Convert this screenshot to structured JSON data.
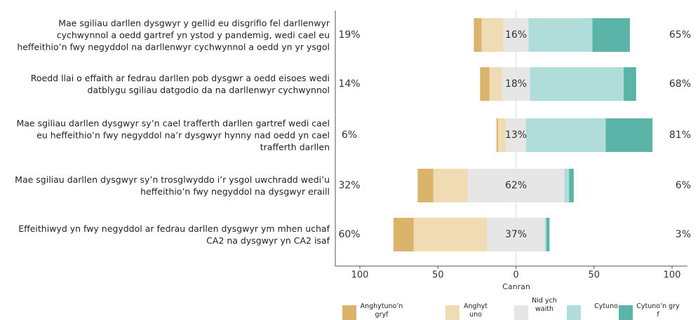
{
  "chart_data": {
    "type": "diverging_bar",
    "categories": [
      "Mae sgiliau darllen dysgwyr y gellid eu disgrifio fel darllenwyr cychwynnol a oedd gartref yn ystod y pandemig, wedi cael eu heffeithio’n fwy negyddol na darllenwyr cychwynnol a oedd yn yr ysgol",
      "Roedd llai o effaith ar fedrau darllen pob dysgwr a oedd eisoes wedi datblygu sgiliau datgodio da na darllenwyr cychwynnol",
      "Mae sgiliau darllen dysgwyr sy’n cael trafferth darllen gartref wedi cael eu heffeithio’n fwy negyddol na’r dysgwyr hynny nad oedd yn cael trafferth darllen",
      "Mae sgiliau darllen dysgwyr sy’n trosglwyddo i’r ysgol uwchradd wedi’u heffeithio’n fwy negyddol na dysgwyr eraill",
      "Effeithiwyd yn fwy negyddol ar fedrau darllen dysgwyr ym mhen uchaf CA2 na dysgwyr yn CA2 isaf"
    ],
    "series": [
      {
        "name": "Anghytuno’n gryf",
        "color": "#d9b46a",
        "side": "left",
        "values": [
          5,
          6,
          1,
          10,
          13
        ]
      },
      {
        "name": "Anghytuno",
        "color": "#f0dcb4",
        "side": "left",
        "values": [
          14,
          8,
          5,
          22,
          47
        ]
      },
      {
        "name": "Nid ychwaith",
        "color": "#e6e6e6",
        "side": "center",
        "values": [
          16,
          18,
          13,
          62,
          37
        ],
        "value_labels": [
          "16%",
          "18%",
          "13%",
          "62%",
          "37%"
        ]
      },
      {
        "name": "Cytuno",
        "color": "#b0ddd9",
        "side": "right",
        "values": [
          41,
          60,
          51,
          3,
          1
        ]
      },
      {
        "name": "Cytuno’n gryf",
        "color": "#5ab5a8",
        "side": "right",
        "values": [
          24,
          8,
          30,
          3,
          2
        ]
      }
    ],
    "left_totals": {
      "values": [
        19,
        14,
        6,
        32,
        60
      ],
      "value_labels": [
        "19%",
        "14%",
        "6%",
        "32%",
        "60%"
      ]
    },
    "right_totals": {
      "values": [
        65,
        68,
        81,
        6,
        3
      ],
      "value_labels": [
        "65%",
        "68%",
        "81%",
        "6%",
        "3%"
      ]
    },
    "xlabel": "Canran",
    "xlim": [
      -100,
      100
    ],
    "xticks": [
      {
        "value": -100,
        "label": "100"
      },
      {
        "value": -50,
        "label": "50"
      },
      0,
      50,
      100
    ]
  }
}
